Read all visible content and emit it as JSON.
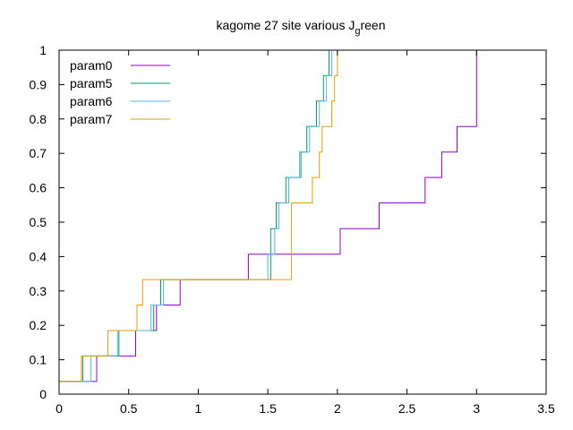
{
  "chart_data": {
    "type": "line",
    "step": true,
    "title_main": "kagome 27 site various J",
    "title_sub": "g",
    "title_tail": "reen",
    "xlabel": "",
    "ylabel": "",
    "xlim": [
      0,
      3.5
    ],
    "ylim": [
      0,
      1
    ],
    "xticks": [
      "0",
      "0.5",
      "1",
      "1.5",
      "2",
      "2.5",
      "3",
      "3.5"
    ],
    "xtick_values": [
      0,
      0.5,
      1,
      1.5,
      2,
      2.5,
      3,
      3.5
    ],
    "yticks": [
      "0",
      "0.1",
      "0.2",
      "0.3",
      "0.4",
      "0.5",
      "0.6",
      "0.7",
      "0.8",
      "0.9",
      "1"
    ],
    "ytick_values": [
      0,
      0.1,
      0.2,
      0.3,
      0.4,
      0.5,
      0.6,
      0.7,
      0.8,
      0.9,
      1
    ],
    "grid": false,
    "legend_position": "top-left",
    "series": [
      {
        "name": "param0",
        "color": "#9400d3",
        "points": [
          [
            0,
            0.037
          ],
          [
            0.27,
            0.037
          ],
          [
            0.27,
            0.111
          ],
          [
            0.55,
            0.111
          ],
          [
            0.55,
            0.185
          ],
          [
            0.7,
            0.185
          ],
          [
            0.7,
            0.259
          ],
          [
            0.87,
            0.259
          ],
          [
            0.87,
            0.333
          ],
          [
            1.36,
            0.333
          ],
          [
            1.36,
            0.407
          ],
          [
            2.02,
            0.407
          ],
          [
            2.02,
            0.481
          ],
          [
            2.3,
            0.481
          ],
          [
            2.3,
            0.556
          ],
          [
            2.63,
            0.556
          ],
          [
            2.63,
            0.63
          ],
          [
            2.75,
            0.63
          ],
          [
            2.75,
            0.704
          ],
          [
            2.86,
            0.704
          ],
          [
            2.86,
            0.778
          ],
          [
            3.0,
            0.778
          ],
          [
            3.0,
            1.0
          ]
        ]
      },
      {
        "name": "param5",
        "color": "#009e73",
        "points": [
          [
            0,
            0.037
          ],
          [
            0.17,
            0.037
          ],
          [
            0.17,
            0.111
          ],
          [
            0.43,
            0.111
          ],
          [
            0.43,
            0.185
          ],
          [
            0.68,
            0.185
          ],
          [
            0.68,
            0.259
          ],
          [
            0.73,
            0.259
          ],
          [
            0.73,
            0.333
          ],
          [
            1.52,
            0.333
          ],
          [
            1.52,
            0.481
          ],
          [
            1.56,
            0.481
          ],
          [
            1.56,
            0.556
          ],
          [
            1.63,
            0.556
          ],
          [
            1.63,
            0.63
          ],
          [
            1.73,
            0.63
          ],
          [
            1.73,
            0.704
          ],
          [
            1.78,
            0.704
          ],
          [
            1.78,
            0.778
          ],
          [
            1.85,
            0.778
          ],
          [
            1.85,
            0.852
          ],
          [
            1.9,
            0.852
          ],
          [
            1.9,
            0.926
          ],
          [
            1.94,
            0.926
          ],
          [
            1.94,
            1.0
          ]
        ]
      },
      {
        "name": "param6",
        "color": "#56b4e9",
        "points": [
          [
            0,
            0.037
          ],
          [
            0.23,
            0.037
          ],
          [
            0.23,
            0.111
          ],
          [
            0.42,
            0.111
          ],
          [
            0.42,
            0.185
          ],
          [
            0.66,
            0.185
          ],
          [
            0.66,
            0.259
          ],
          [
            0.75,
            0.259
          ],
          [
            0.75,
            0.333
          ],
          [
            1.5,
            0.333
          ],
          [
            1.5,
            0.407
          ],
          [
            1.55,
            0.407
          ],
          [
            1.55,
            0.481
          ],
          [
            1.58,
            0.481
          ],
          [
            1.58,
            0.556
          ],
          [
            1.65,
            0.556
          ],
          [
            1.65,
            0.63
          ],
          [
            1.74,
            0.63
          ],
          [
            1.74,
            0.704
          ],
          [
            1.8,
            0.704
          ],
          [
            1.8,
            0.778
          ],
          [
            1.87,
            0.778
          ],
          [
            1.87,
            0.852
          ],
          [
            1.92,
            0.852
          ],
          [
            1.92,
            0.926
          ],
          [
            1.96,
            0.926
          ],
          [
            1.96,
            1.0
          ]
        ]
      },
      {
        "name": "param7",
        "color": "#e69f00",
        "points": [
          [
            0,
            0.037
          ],
          [
            0.16,
            0.037
          ],
          [
            0.16,
            0.111
          ],
          [
            0.35,
            0.111
          ],
          [
            0.35,
            0.185
          ],
          [
            0.56,
            0.185
          ],
          [
            0.56,
            0.259
          ],
          [
            0.6,
            0.259
          ],
          [
            0.6,
            0.333
          ],
          [
            1.67,
            0.333
          ],
          [
            1.67,
            0.556
          ],
          [
            1.82,
            0.556
          ],
          [
            1.82,
            0.63
          ],
          [
            1.87,
            0.63
          ],
          [
            1.87,
            0.704
          ],
          [
            1.89,
            0.704
          ],
          [
            1.89,
            0.778
          ],
          [
            1.96,
            0.778
          ],
          [
            1.96,
            0.852
          ],
          [
            1.98,
            0.852
          ],
          [
            1.98,
            0.926
          ],
          [
            2.0,
            0.926
          ],
          [
            2.0,
            1.0
          ]
        ]
      }
    ]
  }
}
